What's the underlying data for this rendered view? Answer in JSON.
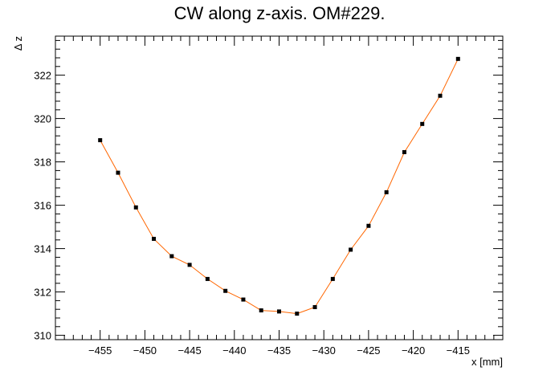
{
  "chart_data": {
    "type": "line",
    "title": "CW along z-axis. OM#229.",
    "xlabel": "x [mm]",
    "ylabel": "Δ z",
    "xlim": [
      -460,
      -410
    ],
    "ylim": [
      309.8,
      323.8
    ],
    "xticks": [
      -455,
      -450,
      -445,
      -440,
      -435,
      -430,
      -425,
      -420,
      -415
    ],
    "yticks": [
      310,
      312,
      314,
      316,
      318,
      320,
      322
    ],
    "xtick_labels": [
      "−455",
      "−450",
      "−445",
      "−440",
      "−435",
      "−430",
      "−425",
      "−420",
      "−415"
    ],
    "ytick_labels": [
      "310",
      "312",
      "314",
      "316",
      "318",
      "320",
      "322"
    ],
    "grid": false,
    "line_color": "#ff6600",
    "marker_color": "#000000",
    "series": [
      {
        "x": [
          -455,
          -453,
          -451,
          -449,
          -447,
          -445,
          -443,
          -441,
          -439,
          -437,
          -435,
          -433,
          -431,
          -429,
          -427,
          -425,
          -423,
          -421,
          -419,
          -417,
          -415
        ],
        "y": [
          319.0,
          317.5,
          315.9,
          314.45,
          313.65,
          313.25,
          312.6,
          312.05,
          311.65,
          311.15,
          311.1,
          311.0,
          311.3,
          312.6,
          313.95,
          315.05,
          316.6,
          318.45,
          319.75,
          321.05,
          322.75
        ]
      }
    ]
  }
}
